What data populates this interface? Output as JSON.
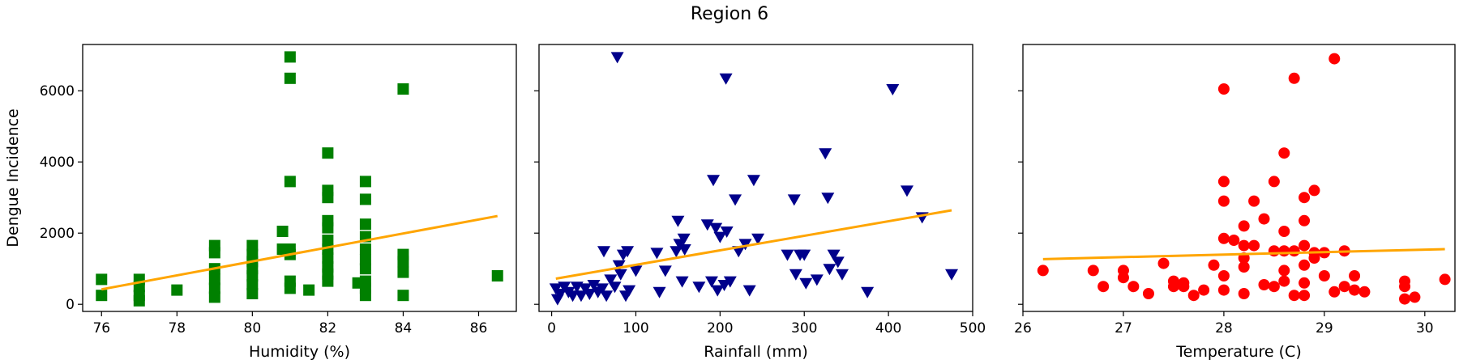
{
  "figure": {
    "title": "Region 6"
  },
  "chart_data": [
    {
      "type": "scatter",
      "xlabel": "Humidity (%)",
      "ylabel": "Dengue Incidence",
      "xlim": [
        75.5,
        87.0
      ],
      "ylim": [
        -200,
        7300
      ],
      "xticks": [
        76,
        78,
        80,
        82,
        84,
        86
      ],
      "yticks": [
        0,
        2000,
        4000,
        6000
      ],
      "marker": "square",
      "color": "#008000",
      "trend_color": "#FFA500",
      "points": [
        [
          76,
          700
        ],
        [
          76,
          250
        ],
        [
          77,
          700
        ],
        [
          77,
          500
        ],
        [
          77,
          250
        ],
        [
          77,
          100
        ],
        [
          78,
          400
        ],
        [
          79,
          1650
        ],
        [
          79,
          1450
        ],
        [
          79,
          1000
        ],
        [
          79,
          700
        ],
        [
          79,
          450
        ],
        [
          79,
          200
        ],
        [
          80,
          1650
        ],
        [
          80,
          1400
        ],
        [
          80,
          1200
        ],
        [
          80,
          1000
        ],
        [
          80,
          800
        ],
        [
          80,
          550
        ],
        [
          80,
          300
        ],
        [
          80.8,
          2050
        ],
        [
          80.8,
          1550
        ],
        [
          81,
          6950
        ],
        [
          81,
          6350
        ],
        [
          81,
          3450
        ],
        [
          81,
          1550
        ],
        [
          81,
          1400
        ],
        [
          81,
          650
        ],
        [
          81,
          450
        ],
        [
          81.5,
          400
        ],
        [
          82,
          4250
        ],
        [
          82,
          3200
        ],
        [
          82,
          3000
        ],
        [
          82,
          2350
        ],
        [
          82,
          2150
        ],
        [
          82,
          1800
        ],
        [
          82,
          1550
        ],
        [
          82,
          1300
        ],
        [
          82,
          1050
        ],
        [
          82,
          850
        ],
        [
          82,
          650
        ],
        [
          82.8,
          600
        ],
        [
          83,
          3450
        ],
        [
          83,
          2950
        ],
        [
          83,
          2250
        ],
        [
          83,
          1900
        ],
        [
          83,
          1550
        ],
        [
          83,
          1250
        ],
        [
          83,
          1000
        ],
        [
          83,
          650
        ],
        [
          83,
          450
        ],
        [
          83,
          250
        ],
        [
          84,
          6050
        ],
        [
          84,
          1400
        ],
        [
          84,
          1200
        ],
        [
          84,
          900
        ],
        [
          84,
          250
        ],
        [
          86.5,
          800
        ]
      ],
      "trend": {
        "x": [
          76,
          86.5
        ],
        "y": [
          420,
          2480
        ]
      }
    },
    {
      "type": "scatter",
      "xlabel": "Rainfall (mm)",
      "ylabel": "",
      "xlim": [
        -15,
        500
      ],
      "ylim": [
        -200,
        7300
      ],
      "xticks": [
        0,
        100,
        200,
        300,
        400,
        500
      ],
      "yticks": [
        0,
        2000,
        4000,
        6000
      ],
      "marker": "triangle-down",
      "color": "#00008B",
      "trend_color": "#FFA500",
      "points": [
        [
          5,
          450
        ],
        [
          7,
          150
        ],
        [
          10,
          300
        ],
        [
          15,
          500
        ],
        [
          20,
          350
        ],
        [
          25,
          250
        ],
        [
          30,
          500
        ],
        [
          35,
          250
        ],
        [
          40,
          450
        ],
        [
          45,
          300
        ],
        [
          50,
          550
        ],
        [
          55,
          350
        ],
        [
          60,
          450
        ],
        [
          62,
          1500
        ],
        [
          65,
          250
        ],
        [
          70,
          700
        ],
        [
          75,
          500
        ],
        [
          78,
          6950
        ],
        [
          80,
          1100
        ],
        [
          82,
          850
        ],
        [
          85,
          1400
        ],
        [
          88,
          250
        ],
        [
          90,
          1500
        ],
        [
          92,
          400
        ],
        [
          100,
          950
        ],
        [
          125,
          1450
        ],
        [
          128,
          350
        ],
        [
          135,
          950
        ],
        [
          148,
          1500
        ],
        [
          150,
          2350
        ],
        [
          152,
          1700
        ],
        [
          155,
          650
        ],
        [
          157,
          1850
        ],
        [
          158,
          1550
        ],
        [
          175,
          500
        ],
        [
          185,
          2250
        ],
        [
          190,
          650
        ],
        [
          192,
          3500
        ],
        [
          195,
          2150
        ],
        [
          197,
          400
        ],
        [
          200,
          1900
        ],
        [
          205,
          550
        ],
        [
          207,
          6350
        ],
        [
          208,
          2050
        ],
        [
          212,
          650
        ],
        [
          218,
          2950
        ],
        [
          222,
          1500
        ],
        [
          230,
          1700
        ],
        [
          235,
          400
        ],
        [
          240,
          3500
        ],
        [
          245,
          1850
        ],
        [
          280,
          1400
        ],
        [
          288,
          2950
        ],
        [
          290,
          850
        ],
        [
          295,
          1400
        ],
        [
          300,
          1400
        ],
        [
          302,
          600
        ],
        [
          315,
          700
        ],
        [
          325,
          4250
        ],
        [
          328,
          3000
        ],
        [
          330,
          1000
        ],
        [
          335,
          1400
        ],
        [
          340,
          1200
        ],
        [
          345,
          850
        ],
        [
          375,
          350
        ],
        [
          405,
          6050
        ],
        [
          422,
          3200
        ],
        [
          440,
          2450
        ],
        [
          475,
          850
        ]
      ],
      "trend": {
        "x": [
          5,
          475
        ],
        "y": [
          720,
          2640
        ]
      }
    },
    {
      "type": "scatter",
      "xlabel": "Temperature (C)",
      "ylabel": "",
      "xlim": [
        26.0,
        30.3
      ],
      "ylim": [
        -200,
        7300
      ],
      "xticks": [
        26,
        27,
        28,
        29,
        30
      ],
      "yticks": [
        0,
        2000,
        4000,
        6000
      ],
      "marker": "circle",
      "color": "#FF0000",
      "trend_color": "#FFA500",
      "points": [
        [
          26.2,
          950
        ],
        [
          26.7,
          950
        ],
        [
          26.8,
          500
        ],
        [
          27.0,
          950
        ],
        [
          27.0,
          750
        ],
        [
          27.1,
          500
        ],
        [
          27.25,
          300
        ],
        [
          27.4,
          1150
        ],
        [
          27.5,
          650
        ],
        [
          27.5,
          500
        ],
        [
          27.6,
          600
        ],
        [
          27.6,
          500
        ],
        [
          27.7,
          250
        ],
        [
          27.8,
          400
        ],
        [
          27.9,
          1100
        ],
        [
          28.0,
          6050
        ],
        [
          28.0,
          3450
        ],
        [
          28.0,
          2900
        ],
        [
          28.0,
          1850
        ],
        [
          28.0,
          800
        ],
        [
          28.0,
          400
        ],
        [
          28.1,
          1800
        ],
        [
          28.2,
          2200
        ],
        [
          28.2,
          1650
        ],
        [
          28.2,
          1300
        ],
        [
          28.2,
          1050
        ],
        [
          28.2,
          300
        ],
        [
          28.3,
          2900
        ],
        [
          28.3,
          1650
        ],
        [
          28.4,
          2400
        ],
        [
          28.4,
          550
        ],
        [
          28.5,
          3450
        ],
        [
          28.5,
          1500
        ],
        [
          28.5,
          500
        ],
        [
          28.6,
          4250
        ],
        [
          28.6,
          2050
        ],
        [
          28.6,
          1500
        ],
        [
          28.6,
          950
        ],
        [
          28.6,
          650
        ],
        [
          28.7,
          6350
        ],
        [
          28.7,
          1500
        ],
        [
          28.7,
          250
        ],
        [
          28.8,
          3000
        ],
        [
          28.8,
          2350
        ],
        [
          28.8,
          1650
        ],
        [
          28.8,
          1100
        ],
        [
          28.8,
          600
        ],
        [
          28.8,
          250
        ],
        [
          28.9,
          3200
        ],
        [
          28.9,
          1450
        ],
        [
          28.9,
          1300
        ],
        [
          29.0,
          1450
        ],
        [
          29.0,
          800
        ],
        [
          29.1,
          6900
        ],
        [
          29.1,
          350
        ],
        [
          29.2,
          1500
        ],
        [
          29.2,
          500
        ],
        [
          29.3,
          800
        ],
        [
          29.3,
          400
        ],
        [
          29.4,
          350
        ],
        [
          29.8,
          650
        ],
        [
          29.8,
          500
        ],
        [
          29.8,
          150
        ],
        [
          29.9,
          200
        ],
        [
          30.2,
          700
        ]
      ],
      "trend": {
        "x": [
          26.2,
          30.2
        ],
        "y": [
          1270,
          1550
        ]
      }
    }
  ]
}
